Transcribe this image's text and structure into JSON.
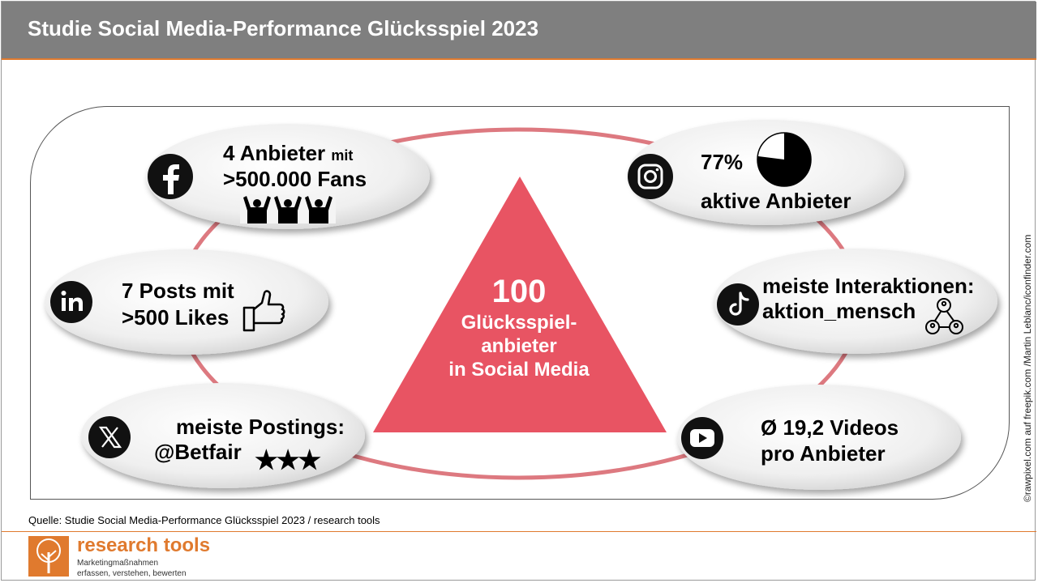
{
  "title": "Studie Social Media-Performance Glücksspiel 2023",
  "center": {
    "number": "100",
    "line1": "Glücksspiel-",
    "line2": "anbieter",
    "line3": "in Social Media"
  },
  "facebook": {
    "icon": "facebook-icon",
    "line1_main": "4 Anbieter",
    "line1_small": "mit",
    "line2": ">500.000 Fans",
    "decor_icon": "cheering-crowd-icon"
  },
  "instagram": {
    "icon": "instagram-icon",
    "percent": "77%",
    "percent_value": 0.77,
    "label": "aktive Anbieter"
  },
  "linkedin": {
    "icon": "linkedin-icon",
    "line1": "7 Posts mit",
    "line2": ">500 Likes",
    "decor_icon": "thumbs-up-icon"
  },
  "tiktok": {
    "icon": "tiktok-icon",
    "line1": "meiste Interaktionen:",
    "line2": "aktion_mensch",
    "decor_icon": "network-people-icon"
  },
  "x": {
    "icon": "x-icon",
    "line1": "meiste Postings:",
    "line2": "@Betfair",
    "decor_icon": "three-stars-icon",
    "stars": "★★★"
  },
  "youtube": {
    "icon": "youtube-icon",
    "line1": "Ø 19,2 Videos",
    "line2": "pro Anbieter"
  },
  "credit": "©rawpixel.com auf freepik.com /Martin Leblanc/iconfinder.com",
  "source": "Quelle: Studie Social Media-Performance  Glücksspiel 2023 / research tools",
  "brand": {
    "name": "research tools",
    "tagline1": "Marketingmaßnahmen",
    "tagline2": "erfassen, verstehen, bewerten"
  },
  "colors": {
    "header": "#7f7f7f",
    "accent": "#e07a2e",
    "triangle": "#e85463",
    "ring": "#d96a72"
  }
}
